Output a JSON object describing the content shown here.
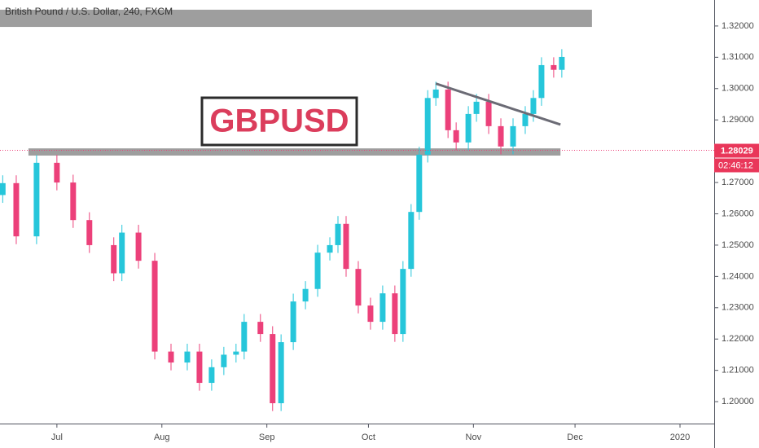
{
  "chart_data": {
    "type": "candlestick",
    "title": "British Pound / U.S. Dollar, 240, FXCM",
    "annotation_text": "GBPUSD",
    "x": [
      166,
      170.0,
      176.0,
      182.0,
      186.8,
      191.6,
      198.8,
      201.2,
      206.1,
      210.9,
      215.7,
      220.5,
      224.1,
      227.7,
      231.3,
      234.9,
      237.3,
      242.1,
      245.7,
      248.2,
      251.8,
      255.4,
      259.0,
      262.6,
      265.0,
      267.4,
      271.0,
      274.6,
      278.2,
      281.8,
      284.2,
      286.6,
      289.0,
      291.5,
      293.9,
      297.5,
      299.9,
      303.5,
      305.9,
      309.5,
      313.1,
      316.7,
      320.3,
      322.7,
      325.1,
      328.7,
      331.1
    ],
    "open": [
      1.266,
      1.2698,
      1.2528,
      1.2763,
      1.27,
      1.258,
      1.25,
      1.241,
      1.254,
      1.245,
      1.216,
      1.2125,
      1.216,
      1.206,
      1.211,
      1.215,
      1.216,
      1.2255,
      1.2216,
      1.1995,
      1.219,
      1.232,
      1.236,
      1.2476,
      1.25,
      1.2568,
      1.2424,
      1.2307,
      1.2255,
      1.2346,
      1.2216,
      1.2424,
      1.2606,
      1.2789,
      1.297,
      1.2997,
      1.2867,
      1.2828,
      1.2919,
      1.2958,
      1.288,
      1.2815,
      1.288,
      1.2919,
      1.297,
      1.3075,
      1.306
    ],
    "high": [
      1.2723,
      1.2723,
      1.2788,
      1.2788,
      1.2725,
      1.2605,
      1.2525,
      1.2565,
      1.2565,
      1.2475,
      1.2185,
      1.2185,
      1.2185,
      1.2135,
      1.2175,
      1.2185,
      1.228,
      1.228,
      1.2241,
      1.2215,
      1.2345,
      1.2385,
      1.2501,
      1.2525,
      1.2593,
      1.2593,
      1.2449,
      1.2332,
      1.2371,
      1.2371,
      1.2449,
      1.2631,
      1.2814,
      1.2995,
      1.3022,
      1.3022,
      1.2892,
      1.2944,
      1.2983,
      1.2983,
      1.2905,
      1.2905,
      1.2944,
      1.2995,
      1.31,
      1.31,
      1.3126
    ],
    "low": [
      1.2635,
      1.2503,
      1.2503,
      1.2675,
      1.2555,
      1.2475,
      1.2385,
      1.2385,
      1.2425,
      1.2135,
      1.21,
      1.21,
      1.2035,
      1.2035,
      1.2085,
      1.2125,
      1.2135,
      1.2191,
      1.197,
      1.197,
      1.2165,
      1.2295,
      1.2335,
      1.2451,
      1.2475,
      1.2399,
      1.2282,
      1.223,
      1.223,
      1.2191,
      1.2191,
      1.2399,
      1.2581,
      1.2764,
      1.2945,
      1.2842,
      1.2803,
      1.2803,
      1.2894,
      1.2855,
      1.279,
      1.279,
      1.2855,
      1.2894,
      1.2945,
      1.3035,
      1.3035
    ],
    "close": [
      1.2698,
      1.2528,
      1.2763,
      1.27,
      1.258,
      1.25,
      1.241,
      1.254,
      1.245,
      1.216,
      1.2125,
      1.216,
      1.206,
      1.211,
      1.215,
      1.216,
      1.2255,
      1.2216,
      1.1995,
      1.219,
      1.232,
      1.236,
      1.2476,
      1.25,
      1.2568,
      1.2424,
      1.2307,
      1.2255,
      1.2346,
      1.2216,
      1.2424,
      1.2606,
      1.2789,
      1.297,
      1.2997,
      1.2867,
      1.2828,
      1.2919,
      1.2958,
      1.288,
      1.2815,
      1.288,
      1.2919,
      1.297,
      1.3075,
      1.306,
      1.3101
    ],
    "up_color": "#26c6da",
    "down_color": "#ec407a",
    "xlim": [
      165.2,
      376.1
    ],
    "ylim": [
      1.193,
      1.3283
    ],
    "xticks": [
      {
        "value": 182,
        "label": "Jul"
      },
      {
        "value": 213,
        "label": "Aug"
      },
      {
        "value": 244,
        "label": "Sep"
      },
      {
        "value": 274,
        "label": "Oct"
      },
      {
        "value": 305,
        "label": "Nov"
      },
      {
        "value": 335,
        "label": "Dec"
      },
      {
        "value": 366,
        "label": "2020"
      }
    ],
    "yticks": [
      {
        "value": 1.2,
        "label": "1.20000"
      },
      {
        "value": 1.21,
        "label": "1.21000"
      },
      {
        "value": 1.22,
        "label": "1.22000"
      },
      {
        "value": 1.23,
        "label": "1.23000"
      },
      {
        "value": 1.24,
        "label": "1.24000"
      },
      {
        "value": 1.25,
        "label": "1.25000"
      },
      {
        "value": 1.26,
        "label": "1.26000"
      },
      {
        "value": 1.27,
        "label": "1.27000"
      },
      {
        "value": 1.28,
        "label": "1.28000"
      },
      {
        "value": 1.29,
        "label": "1.29000"
      },
      {
        "value": 1.3,
        "label": "1.30000"
      },
      {
        "value": 1.31,
        "label": "1.31000"
      },
      {
        "value": 1.32,
        "label": "1.32000"
      }
    ],
    "last_price": {
      "value": 1.28029,
      "label": "1.28029"
    },
    "countdown": "02:46:12",
    "zones": [
      {
        "x": [
          165.2,
          340.0
        ],
        "y": [
          1.3197,
          1.3252
        ]
      },
      {
        "x": [
          173.6,
          330.7
        ],
        "y": [
          1.2786,
          1.2809
        ]
      }
    ],
    "trendline": {
      "x": [
        293.9,
        330.7
      ],
      "y": [
        1.3016,
        1.2885
      ]
    }
  }
}
